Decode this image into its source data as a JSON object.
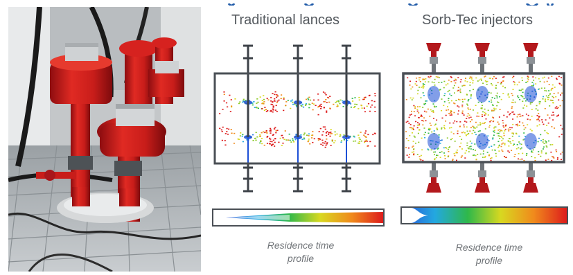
{
  "colors": {
    "title_text": "#555a5f",
    "frame": "#4a4f55",
    "lance_dark": "#3d4248",
    "injector_red": "#b3181c",
    "injector_grey": "#8c9196",
    "header_band": "#1f5aa8",
    "spray_blue": "#1c4fd6",
    "gradient": [
      "#2a54d8",
      "#23a8e0",
      "#2fb84a",
      "#d8d820",
      "#f08a1c",
      "#dd1c1c"
    ]
  },
  "photo": {
    "icon": "injector-photo"
  },
  "panels": [
    {
      "id": "traditional",
      "title": "Traditional lances",
      "caption_line1": "Residence time",
      "caption_line2": "profile",
      "profile": "narrow-wedge"
    },
    {
      "id": "sorbtec",
      "title": "Sorb-Tec injectors",
      "caption_line1": "Residence time",
      "caption_line2": "profile",
      "profile": "wide-funnel"
    }
  ]
}
